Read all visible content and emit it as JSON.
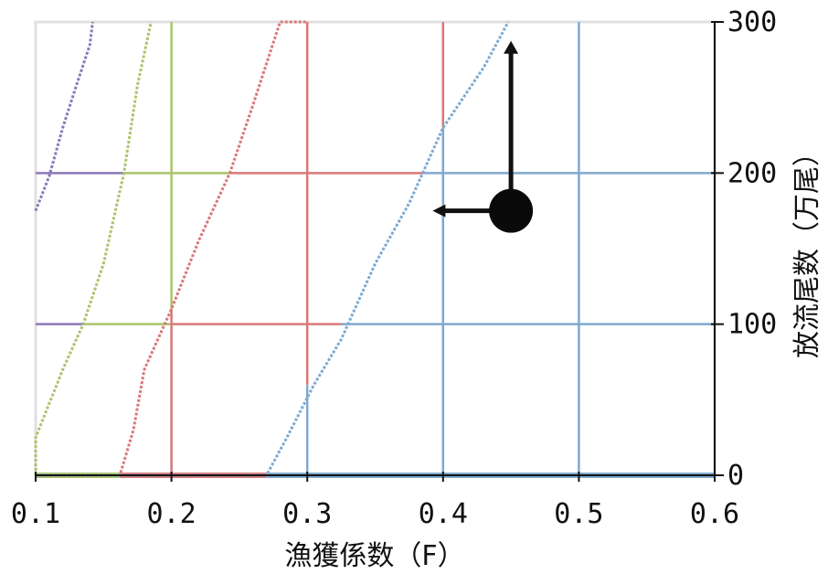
{
  "chart_data": {
    "type": "line",
    "title": "",
    "xlabel": "漁獲係数（F）",
    "ylabel": "放流尾数（万尾）",
    "xlim": [
      0.1,
      0.6
    ],
    "ylim": [
      0,
      300
    ],
    "x_ticks": [
      "0.1",
      "0.2",
      "0.3",
      "0.4",
      "0.5",
      "0.6"
    ],
    "y_ticks": [
      "0",
      "100",
      "200",
      "300"
    ],
    "y_axis_side": "right",
    "grid": "colored zone lines",
    "legend": "none",
    "series": [
      {
        "color": "#8b78b8",
        "points": [
          [
            0.1,
            175
          ],
          [
            0.11,
            198
          ],
          [
            0.12,
            230
          ],
          [
            0.13,
            258
          ],
          [
            0.14,
            285
          ],
          [
            0.142,
            300
          ]
        ]
      },
      {
        "color": "#a9c46c",
        "points": [
          [
            0.1,
            0
          ],
          [
            0.1,
            25
          ],
          [
            0.12,
            70
          ],
          [
            0.135,
            100
          ],
          [
            0.15,
            140
          ],
          [
            0.165,
            200
          ],
          [
            0.175,
            258
          ],
          [
            0.185,
            300
          ]
        ]
      },
      {
        "color": "#d97878",
        "points": [
          [
            0.1,
            0
          ],
          [
            0.162,
            0
          ],
          [
            0.172,
            30
          ],
          [
            0.18,
            70
          ],
          [
            0.2,
            110
          ],
          [
            0.22,
            155
          ],
          [
            0.243,
            200
          ],
          [
            0.26,
            245
          ],
          [
            0.28,
            300
          ],
          [
            0.3,
            300
          ]
        ]
      },
      {
        "color": "#7fa9d0",
        "points": [
          [
            0.1,
            0
          ],
          [
            0.27,
            0
          ],
          [
            0.285,
            25
          ],
          [
            0.305,
            60
          ],
          [
            0.325,
            90
          ],
          [
            0.35,
            140
          ],
          [
            0.375,
            180
          ],
          [
            0.4,
            230
          ],
          [
            0.43,
            270
          ],
          [
            0.448,
            300
          ]
        ]
      }
    ],
    "zone_lines": [
      {
        "orientation": "h",
        "y": 100,
        "x_from": 0.1,
        "x_to": 0.135,
        "color": "#8b78b8"
      },
      {
        "orientation": "h",
        "y": 100,
        "x_from": 0.135,
        "x_to": 0.2,
        "color": "#a9c46c"
      },
      {
        "orientation": "h",
        "y": 100,
        "x_from": 0.2,
        "x_to": 0.325,
        "color": "#d97878"
      },
      {
        "orientation": "h",
        "y": 100,
        "x_from": 0.325,
        "x_to": 0.6,
        "color": "#7fa9d0"
      },
      {
        "orientation": "h",
        "y": 200,
        "x_from": 0.1,
        "x_to": 0.165,
        "color": "#8b78b8"
      },
      {
        "orientation": "h",
        "y": 200,
        "x_from": 0.165,
        "x_to": 0.243,
        "color": "#a9c46c"
      },
      {
        "orientation": "h",
        "y": 200,
        "x_from": 0.243,
        "x_to": 0.385,
        "color": "#d97878"
      },
      {
        "orientation": "h",
        "y": 200,
        "x_from": 0.385,
        "x_to": 0.6,
        "color": "#7fa9d0"
      },
      {
        "orientation": "v",
        "x": 0.2,
        "y_from": 0,
        "y_to": 110,
        "color": "#d97878"
      },
      {
        "orientation": "v",
        "x": 0.2,
        "y_from": 110,
        "y_to": 300,
        "color": "#a9c46c"
      },
      {
        "orientation": "v",
        "x": 0.3,
        "y_from": 0,
        "y_to": 60,
        "color": "#7fa9d0"
      },
      {
        "orientation": "v",
        "x": 0.3,
        "y_from": 60,
        "y_to": 300,
        "color": "#d97878"
      },
      {
        "orientation": "v",
        "x": 0.4,
        "y_from": 0,
        "y_to": 230,
        "color": "#7fa9d0"
      },
      {
        "orientation": "v",
        "x": 0.4,
        "y_from": 230,
        "y_to": 300,
        "color": "#d97878"
      },
      {
        "orientation": "v",
        "x": 0.5,
        "y_from": 0,
        "y_to": 300,
        "color": "#7fa9d0"
      }
    ],
    "baseline_bands": [
      {
        "x_from": 0.1,
        "x_to": 0.162,
        "color": "#a9c46c"
      },
      {
        "x_from": 0.162,
        "x_to": 0.27,
        "color": "#d97878"
      },
      {
        "x_from": 0.27,
        "x_to": 0.6,
        "color": "#7fa9d0"
      }
    ],
    "marker": {
      "x": 0.45,
      "y": 175
    },
    "arrows": [
      {
        "from": [
          0.45,
          175
        ],
        "to": [
          0.45,
          285
        ],
        "direction": "up"
      },
      {
        "from": [
          0.45,
          175
        ],
        "to": [
          0.395,
          175
        ],
        "direction": "left"
      }
    ]
  }
}
